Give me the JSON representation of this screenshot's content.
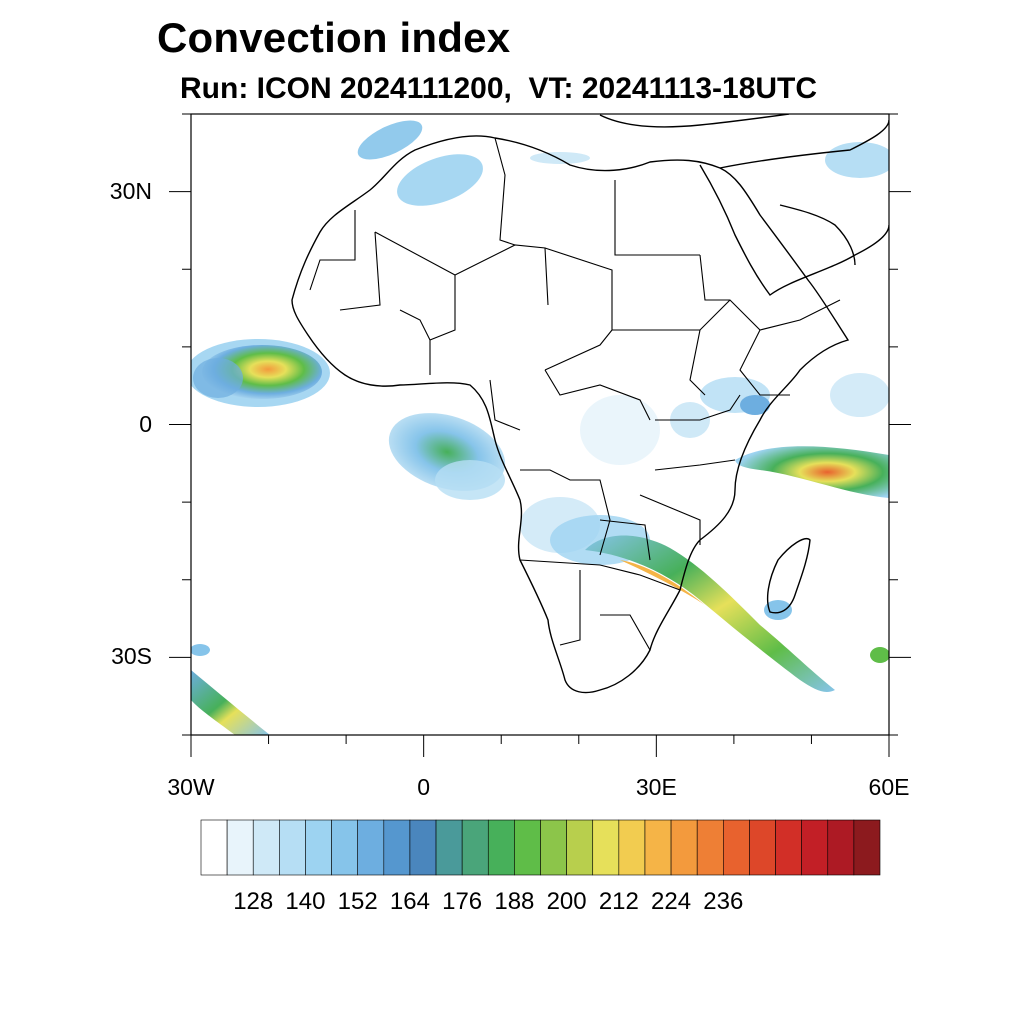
{
  "title": "Convection index",
  "subtitle": "Run: ICON 2024111200,  VT: 20241113-18UTC",
  "map": {
    "lon_range": [
      -30,
      60
    ],
    "lat_range": [
      -40,
      40
    ],
    "lon_ticks": [
      {
        "lon": -30,
        "label": "30W"
      },
      {
        "lon": 0,
        "label": "0"
      },
      {
        "lon": 30,
        "label": "30E"
      },
      {
        "lon": 60,
        "label": "60E"
      }
    ],
    "lat_ticks": [
      {
        "lat": 30,
        "label": "30N"
      },
      {
        "lat": 0,
        "label": "0"
      },
      {
        "lat": -30,
        "label": "30S"
      }
    ],
    "minor_lon_step": 10,
    "minor_lat_step": 10
  },
  "colorbar": {
    "colors": [
      "#ffffff",
      "#e8f4fb",
      "#cfe9f7",
      "#b6def4",
      "#9dd3f1",
      "#86c4ea",
      "#6daee0",
      "#5597cf",
      "#4a86bd",
      "#4a9a9a",
      "#4aa57a",
      "#47b05a",
      "#5fbd48",
      "#8cc54a",
      "#b8cf4d",
      "#e6e05a",
      "#f2cc50",
      "#f5b447",
      "#f39a3d",
      "#ee7f35",
      "#e8622e",
      "#dd4729",
      "#d22f27",
      "#c21f26",
      "#ad1a24",
      "#8c1a1e"
    ],
    "labels": [
      "128",
      "140",
      "152",
      "164",
      "176",
      "188",
      "200",
      "212",
      "224",
      "236"
    ],
    "label_boundary_index": [
      2,
      4,
      6,
      8,
      10,
      12,
      14,
      16,
      18,
      20
    ]
  }
}
